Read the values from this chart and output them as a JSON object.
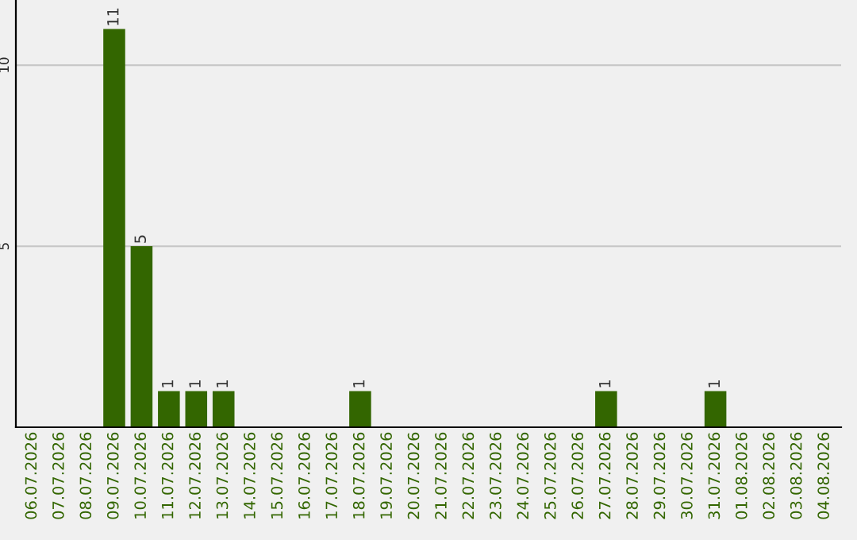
{
  "chart_data": {
    "type": "bar",
    "categories": [
      "06.07.2026",
      "07.07.2026",
      "08.07.2026",
      "09.07.2026",
      "10.07.2026",
      "11.07.2026",
      "12.07.2026",
      "13.07.2026",
      "14.07.2026",
      "15.07.2026",
      "16.07.2026",
      "17.07.2026",
      "18.07.2026",
      "19.07.2026",
      "20.07.2026",
      "21.07.2026",
      "22.07.2026",
      "23.07.2026",
      "24.07.2026",
      "25.07.2026",
      "26.07.2026",
      "27.07.2026",
      "28.07.2026",
      "29.07.2026",
      "30.07.2026",
      "31.07.2026",
      "01.08.2026",
      "02.08.2026",
      "03.08.2026",
      "04.08.2026"
    ],
    "values": [
      0,
      0,
      0,
      11,
      5,
      1,
      1,
      1,
      0,
      0,
      0,
      0,
      1,
      0,
      0,
      0,
      0,
      0,
      0,
      0,
      0,
      1,
      0,
      0,
      0,
      1,
      0,
      0,
      0,
      0
    ],
    "value_labels": [
      null,
      null,
      null,
      "11",
      "5",
      "1",
      "1",
      "1",
      null,
      null,
      null,
      null,
      "1",
      null,
      null,
      null,
      null,
      null,
      null,
      null,
      null,
      "1",
      null,
      null,
      null,
      "1",
      null,
      null,
      null,
      null
    ],
    "color": "#336600",
    "ylim": [
      0,
      11.8
    ],
    "yticks": [
      5,
      10
    ],
    "grid": "y"
  }
}
